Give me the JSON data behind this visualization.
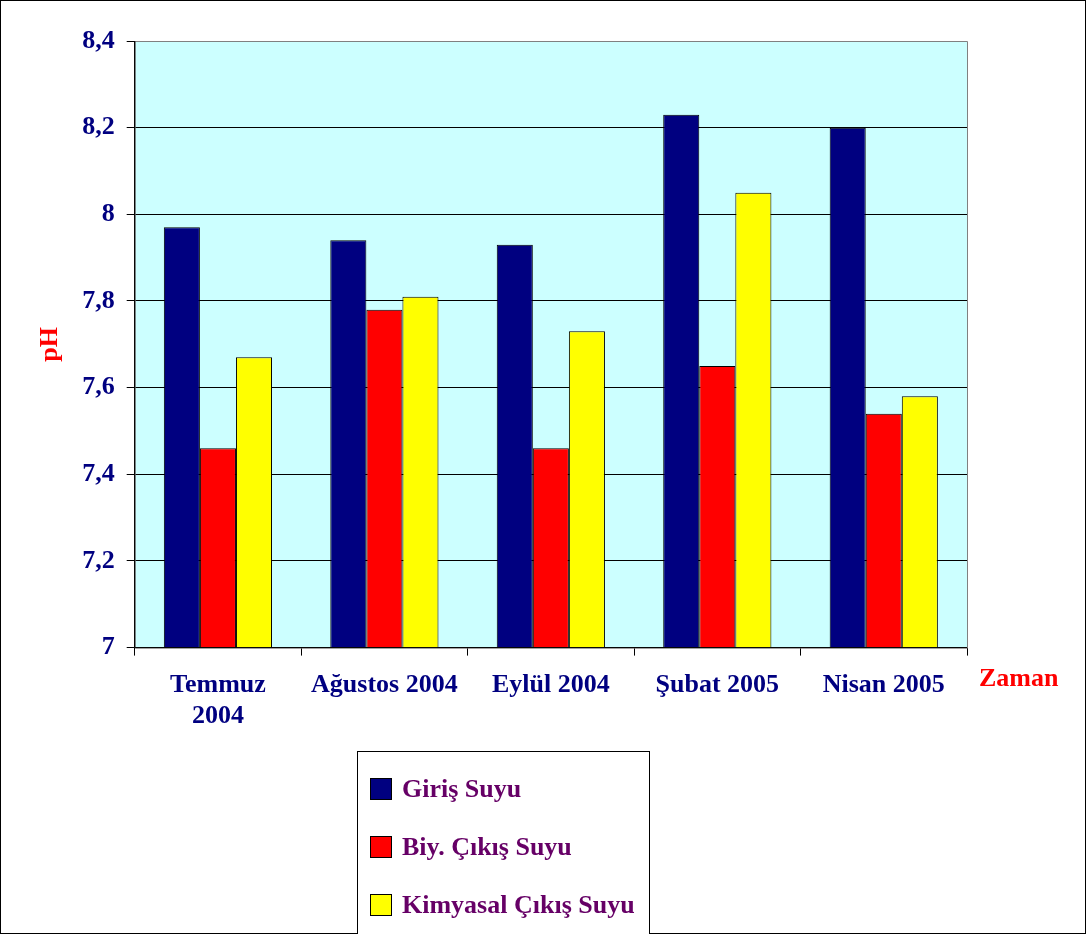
{
  "chart_data": {
    "type": "bar",
    "ylabel": "pH",
    "xlabel": "Zaman",
    "categories": [
      "Temmuz 2004",
      "Ağustos 2004",
      "Eylül 2004",
      "Şubat 2005",
      "Nisan 2005"
    ],
    "series": [
      {
        "name": "Giriş Suyu",
        "color": "#000080",
        "values": [
          7.97,
          7.94,
          7.93,
          8.23,
          8.2
        ]
      },
      {
        "name": "Biy. Çıkış Suyu",
        "color": "#ff0000",
        "values": [
          7.46,
          7.78,
          7.46,
          7.65,
          7.54
        ]
      },
      {
        "name": "Kimyasal Çıkış Suyu",
        "color": "#ffff00",
        "values": [
          7.67,
          7.81,
          7.73,
          8.05,
          7.58
        ]
      }
    ],
    "ylim": [
      7,
      8.4
    ],
    "yticks": [
      7,
      {
        "value": 7.2,
        "label": "7,2"
      },
      {
        "value": 7.4,
        "label": "7,4"
      },
      {
        "value": 7.6,
        "label": "7,6"
      },
      {
        "value": 7.8,
        "label": "7,8"
      },
      8,
      {
        "value": 8.2,
        "label": "8,2"
      },
      {
        "value": 8.4,
        "label": "8,4"
      }
    ],
    "grid": "y",
    "legend": "bottom"
  }
}
